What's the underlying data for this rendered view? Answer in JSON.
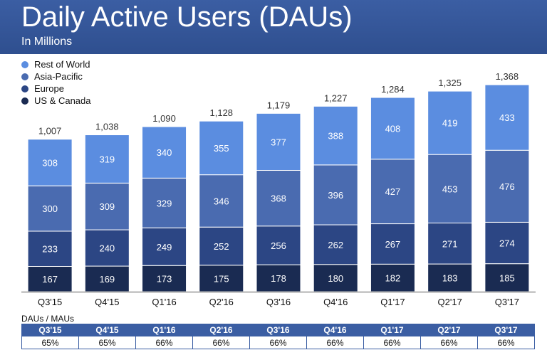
{
  "header": {
    "title": "Daily Active Users (DAUs)",
    "subtitle": "In Millions"
  },
  "colors": {
    "US & Canada": "#1a2b52",
    "Europe": "#2c4684",
    "Asia-Pacific": "#4a6bb0",
    "Rest of World": "#5b8de0"
  },
  "chart_data": {
    "type": "bar",
    "stacked": true,
    "title": "Daily Active Users (DAUs)",
    "subtitle": "In Millions",
    "categories": [
      "Q3'15",
      "Q4'15",
      "Q1'16",
      "Q2'16",
      "Q3'16",
      "Q4'16",
      "Q1'17",
      "Q2'17",
      "Q3'17"
    ],
    "series": [
      {
        "name": "US & Canada",
        "values": [
          167,
          169,
          173,
          175,
          178,
          180,
          182,
          183,
          185
        ]
      },
      {
        "name": "Europe",
        "values": [
          233,
          240,
          249,
          252,
          256,
          262,
          267,
          271,
          274
        ]
      },
      {
        "name": "Asia-Pacific",
        "values": [
          300,
          309,
          329,
          346,
          368,
          396,
          427,
          453,
          476
        ]
      },
      {
        "name": "Rest of World",
        "values": [
          308,
          319,
          340,
          355,
          377,
          388,
          408,
          419,
          433
        ]
      }
    ],
    "totals": [
      "1,007",
      "1,038",
      "1,090",
      "1,128",
      "1,179",
      "1,227",
      "1,284",
      "1,325",
      "1,368"
    ],
    "legend_order": [
      "Rest of World",
      "Asia-Pacific",
      "Europe",
      "US & Canada"
    ],
    "legend_position": "top-left",
    "ylim": [
      0,
      1400
    ],
    "grid": false
  },
  "mau_table": {
    "caption": "DAUs / MAUs",
    "quarters": [
      "Q3'15",
      "Q4'15",
      "Q1'16",
      "Q2'16",
      "Q3'16",
      "Q4'16",
      "Q1'17",
      "Q2'17",
      "Q3'17"
    ],
    "values": [
      "65%",
      "65%",
      "66%",
      "66%",
      "66%",
      "66%",
      "66%",
      "66%",
      "66%"
    ]
  }
}
